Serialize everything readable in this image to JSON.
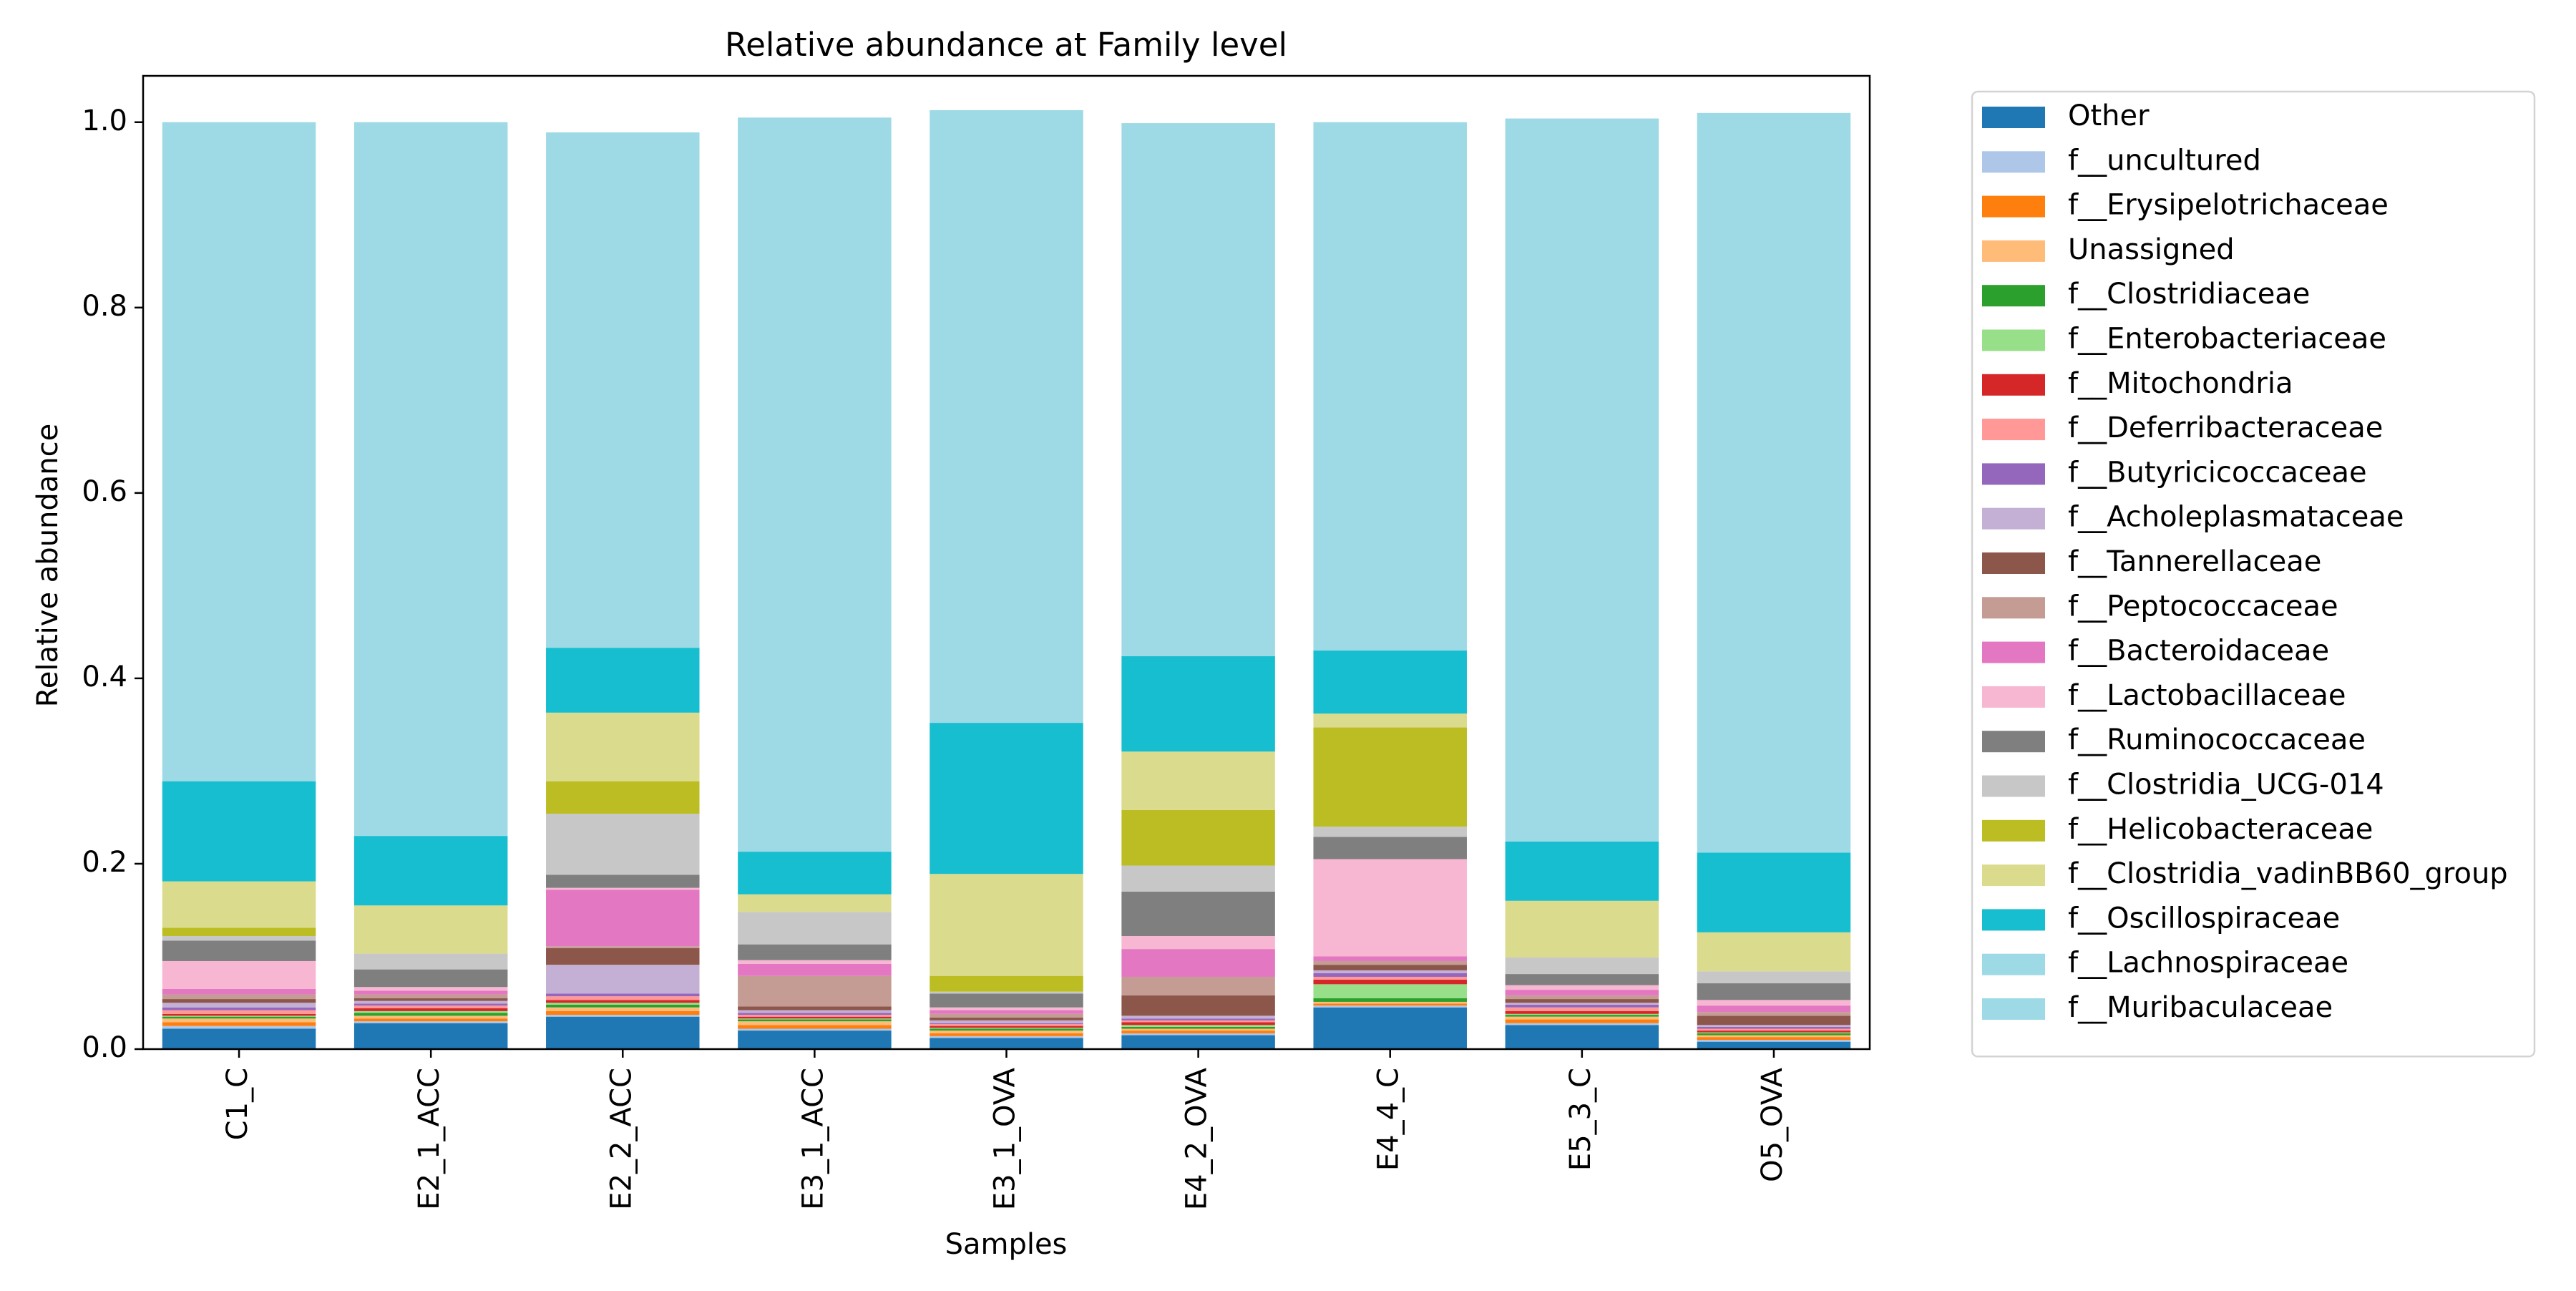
{
  "chart_data": {
    "type": "bar",
    "stacked": true,
    "title": "Relative abundance at Family level",
    "xlabel": "Samples",
    "ylabel": "Relative abundance",
    "ylim": [
      0,
      1.05
    ],
    "yticks": [
      0.0,
      0.2,
      0.4,
      0.6,
      0.8,
      1.0
    ],
    "ytick_labels": [
      "0.0",
      "0.2",
      "0.4",
      "0.6",
      "0.8",
      "1.0"
    ],
    "legend_position": "outside-right-top",
    "grid": false,
    "categories": [
      "C1_C",
      "E2_1_ACC",
      "E2_2_ACC",
      "E3_1_ACC",
      "E3_1_OVA",
      "E4_2_OVA",
      "E4_4_C",
      "E5_3_C",
      "O5_OVA"
    ],
    "series": [
      {
        "name": "Other",
        "color": "#1f77b4",
        "values": [
          0.022,
          0.028,
          0.035,
          0.02,
          0.012,
          0.015,
          0.045,
          0.026,
          0.008
        ]
      },
      {
        "name": "f__uncultured",
        "color": "#aec7e8",
        "values": [
          0.003,
          0.002,
          0.002,
          0.002,
          0.002,
          0.002,
          0.002,
          0.002,
          0.002
        ]
      },
      {
        "name": "f__Erysipelotrichaceae",
        "color": "#ff7f0e",
        "values": [
          0.004,
          0.003,
          0.004,
          0.004,
          0.003,
          0.003,
          0.002,
          0.004,
          0.003
        ]
      },
      {
        "name": "Unassigned",
        "color": "#ffbb78",
        "values": [
          0.004,
          0.003,
          0.004,
          0.004,
          0.003,
          0.002,
          0.002,
          0.003,
          0.002
        ]
      },
      {
        "name": "f__Clostridiaceae",
        "color": "#2ca02c",
        "values": [
          0.002,
          0.003,
          0.003,
          0.002,
          0.002,
          0.002,
          0.004,
          0.002,
          0.002
        ]
      },
      {
        "name": "f__Enterobacteriaceae",
        "color": "#98df8a",
        "values": [
          0.001,
          0.002,
          0.002,
          0.001,
          0.001,
          0.002,
          0.015,
          0.001,
          0.001
        ]
      },
      {
        "name": "f__Mitochondria",
        "color": "#d62728",
        "values": [
          0.002,
          0.003,
          0.003,
          0.002,
          0.002,
          0.003,
          0.005,
          0.003,
          0.002
        ]
      },
      {
        "name": "f__Deferribacteraceae",
        "color": "#ff9896",
        "values": [
          0.004,
          0.003,
          0.004,
          0.002,
          0.002,
          0.002,
          0.003,
          0.004,
          0.002
        ]
      },
      {
        "name": "f__Butyricicoccaceae",
        "color": "#9467bd",
        "values": [
          0.003,
          0.002,
          0.003,
          0.002,
          0.001,
          0.002,
          0.004,
          0.003,
          0.002
        ]
      },
      {
        "name": "f__Acholeplasmataceae",
        "color": "#c5b0d5",
        "values": [
          0.005,
          0.003,
          0.031,
          0.003,
          0.003,
          0.003,
          0.003,
          0.002,
          0.002
        ]
      },
      {
        "name": "f__Tannerellaceae",
        "color": "#8c564b",
        "values": [
          0.004,
          0.003,
          0.018,
          0.004,
          0.003,
          0.022,
          0.006,
          0.004,
          0.01
        ]
      },
      {
        "name": "f__Peptococcaceae",
        "color": "#c49c94",
        "values": [
          0.005,
          0.004,
          0.002,
          0.033,
          0.004,
          0.02,
          0.004,
          0.004,
          0.004
        ]
      },
      {
        "name": "f__Bacteroidaceae",
        "color": "#e377c2",
        "values": [
          0.006,
          0.004,
          0.061,
          0.013,
          0.004,
          0.03,
          0.005,
          0.006,
          0.007
        ]
      },
      {
        "name": "f__Lactobacillaceae",
        "color": "#f7b6d2",
        "values": [
          0.03,
          0.004,
          0.002,
          0.004,
          0.003,
          0.014,
          0.105,
          0.005,
          0.006
        ]
      },
      {
        "name": "f__Ruminococcaceae",
        "color": "#7f7f7f",
        "values": [
          0.022,
          0.019,
          0.014,
          0.017,
          0.015,
          0.048,
          0.024,
          0.012,
          0.018
        ]
      },
      {
        "name": "f__Clostridia_UCG-014",
        "color": "#c7c7c7",
        "values": [
          0.005,
          0.017,
          0.066,
          0.035,
          0.002,
          0.028,
          0.011,
          0.018,
          0.013
        ]
      },
      {
        "name": "f__Helicobacteraceae",
        "color": "#bcbd22",
        "values": [
          0.009,
          0.0,
          0.035,
          0.0,
          0.017,
          0.06,
          0.107,
          0.0,
          0.0
        ]
      },
      {
        "name": "f__Clostridia_vadinBB60_group",
        "color": "#dbdb8d",
        "values": [
          0.05,
          0.052,
          0.074,
          0.019,
          0.11,
          0.063,
          0.015,
          0.061,
          0.042
        ]
      },
      {
        "name": "f__Oscillospiraceae",
        "color": "#17becf",
        "values": [
          0.108,
          0.075,
          0.07,
          0.046,
          0.163,
          0.103,
          0.068,
          0.064,
          0.086
        ]
      },
      {
        "name": "f__Lachnospiraceae",
        "color": "#9edae5",
        "values": [
          0.0,
          0.0,
          0.0,
          0.0,
          0.0,
          0.0,
          0.0,
          0.0,
          0.0
        ]
      },
      {
        "name": "f__Muribaculaceae",
        "color": "#9edae5",
        "values": [
          0.711,
          0.77,
          0.556,
          0.792,
          0.661,
          0.575,
          0.57,
          0.78,
          0.798
        ]
      }
    ]
  }
}
